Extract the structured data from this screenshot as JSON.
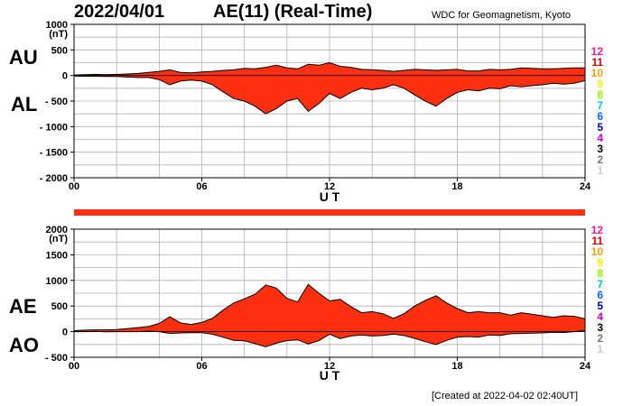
{
  "header": {
    "date": "2022/04/01",
    "title": "AE(11) (Real-Time)",
    "source": "WDC for Geomagnetism, Kyoto"
  },
  "footer": {
    "created": "[Created at 2022-04-02 02:40UT]"
  },
  "colors": {
    "fill": "#ff3010",
    "outline": "#000000",
    "grid": "#b0b0b0",
    "timebar": "#ff3010"
  },
  "legend": [
    {
      "label": "12",
      "color": "#ff1493"
    },
    {
      "label": "11",
      "color": "#dd0000"
    },
    {
      "label": "10",
      "color": "#ff9900"
    },
    {
      "label": "9",
      "color": "#ffee00"
    },
    {
      "label": "8",
      "color": "#99ee00"
    },
    {
      "label": "7",
      "color": "#00cccc"
    },
    {
      "label": "6",
      "color": "#0066ff"
    },
    {
      "label": "5",
      "color": "#0000aa"
    },
    {
      "label": "4",
      "color": "#cc00cc"
    },
    {
      "label": "3",
      "color": "#000000"
    },
    {
      "label": "2",
      "color": "#777777"
    },
    {
      "label": "1",
      "color": "#cccccc"
    }
  ],
  "chart_data": [
    {
      "type": "area",
      "unit": "(nT)",
      "xlabel": "U T",
      "xlim": [
        0,
        24
      ],
      "xticks": [
        "00",
        "06",
        "12",
        "18",
        "24"
      ],
      "ylim": [
        -2000,
        1000
      ],
      "yticks": [
        "1000",
        "500",
        "0",
        "- 500",
        "- 1000",
        "- 1500",
        "- 2000"
      ],
      "grid": true,
      "upper_label": "AU",
      "lower_label": "AL",
      "x": [
        0,
        0.5,
        1,
        1.5,
        2,
        2.5,
        3,
        3.5,
        4,
        4.5,
        5,
        5.5,
        6,
        6.5,
        7,
        7.5,
        8,
        8.5,
        9,
        9.5,
        10,
        10.5,
        11,
        11.5,
        12,
        12.5,
        13,
        13.5,
        14,
        14.5,
        15,
        15.5,
        16,
        16.5,
        17,
        17.5,
        18,
        18.5,
        19,
        19.5,
        20,
        20.5,
        21,
        21.5,
        22,
        22.5,
        23,
        23.5,
        24
      ],
      "series": [
        {
          "name": "AU",
          "values": [
            10,
            15,
            20,
            15,
            20,
            30,
            40,
            60,
            80,
            110,
            60,
            50,
            70,
            80,
            100,
            110,
            140,
            130,
            160,
            200,
            150,
            130,
            220,
            200,
            250,
            180,
            160,
            120,
            110,
            100,
            80,
            100,
            120,
            110,
            100,
            110,
            120,
            90,
            90,
            120,
            110,
            120,
            150,
            140,
            130,
            130,
            140,
            150,
            150
          ]
        },
        {
          "name": "AL",
          "values": [
            -10,
            -15,
            -15,
            -20,
            -20,
            -30,
            -40,
            -40,
            -80,
            -180,
            -110,
            -90,
            -110,
            -180,
            -320,
            -450,
            -500,
            -600,
            -750,
            -650,
            -500,
            -450,
            -700,
            -550,
            -350,
            -450,
            -330,
            -250,
            -280,
            -250,
            -180,
            -250,
            -380,
            -500,
            -600,
            -450,
            -330,
            -280,
            -300,
            -250,
            -260,
            -200,
            -220,
            -200,
            -180,
            -150,
            -170,
            -150,
            -100
          ]
        }
      ]
    },
    {
      "type": "area",
      "unit": "(nT)",
      "xlabel": "U T",
      "xlim": [
        0,
        24
      ],
      "xticks": [
        "00",
        "06",
        "12",
        "18",
        "24"
      ],
      "ylim": [
        -500,
        2000
      ],
      "yticks": [
        "2000",
        "1500",
        "1000",
        "500",
        "0",
        "- 500"
      ],
      "grid": true,
      "upper_label": "AE",
      "lower_label": "AO",
      "x": [
        0,
        0.5,
        1,
        1.5,
        2,
        2.5,
        3,
        3.5,
        4,
        4.5,
        5,
        5.5,
        6,
        6.5,
        7,
        7.5,
        8,
        8.5,
        9,
        9.5,
        10,
        10.5,
        11,
        11.5,
        12,
        12.5,
        13,
        13.5,
        14,
        14.5,
        15,
        15.5,
        16,
        16.5,
        17,
        17.5,
        18,
        18.5,
        19,
        19.5,
        20,
        20.5,
        21,
        21.5,
        22,
        22.5,
        23,
        23.5,
        24
      ],
      "series": [
        {
          "name": "AE",
          "values": [
            20,
            30,
            35,
            35,
            40,
            60,
            80,
            100,
            160,
            290,
            170,
            140,
            180,
            260,
            420,
            560,
            640,
            730,
            910,
            850,
            650,
            580,
            920,
            750,
            600,
            630,
            490,
            370,
            390,
            350,
            260,
            350,
            500,
            610,
            700,
            560,
            450,
            370,
            390,
            370,
            370,
            320,
            370,
            340,
            310,
            280,
            310,
            300,
            250
          ]
        },
        {
          "name": "AO",
          "values": [
            0,
            0,
            3,
            -3,
            0,
            0,
            0,
            10,
            0,
            -35,
            -25,
            -20,
            -20,
            -50,
            -110,
            -170,
            -180,
            -235,
            -295,
            -225,
            -175,
            -160,
            -240,
            -175,
            -50,
            -135,
            -85,
            -65,
            -85,
            -75,
            -50,
            -75,
            -130,
            -195,
            -250,
            -170,
            -105,
            -95,
            -105,
            -65,
            -75,
            -40,
            -35,
            -30,
            -25,
            -10,
            -15,
            0,
            25
          ]
        }
      ]
    }
  ]
}
